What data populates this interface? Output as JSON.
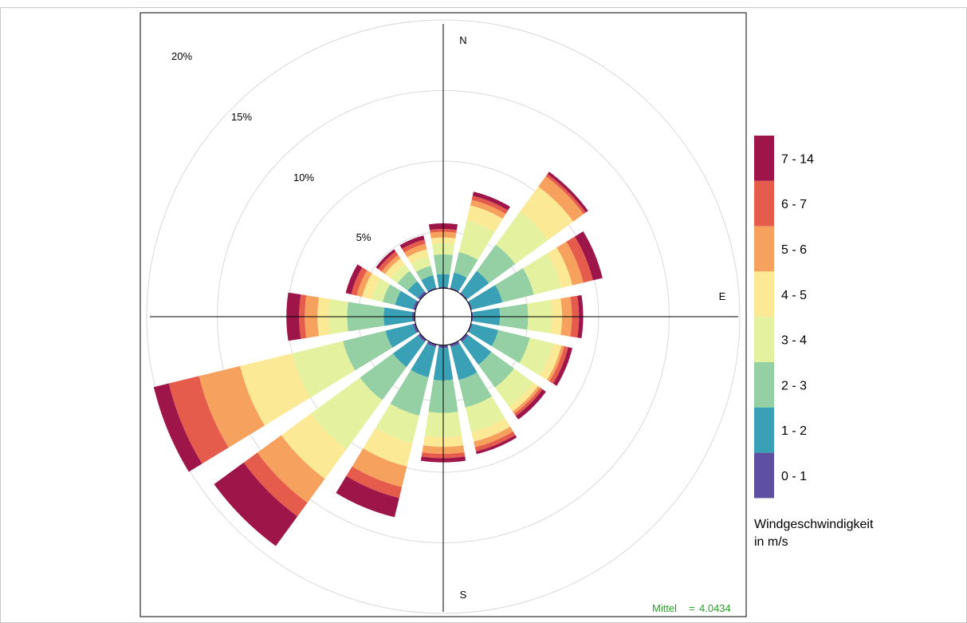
{
  "chart_data": {
    "type": "windrose",
    "directions": [
      "N",
      "NNE",
      "NE",
      "ENE",
      "E",
      "ESE",
      "SE",
      "SSE",
      "S",
      "SSW",
      "SW",
      "WSW",
      "W",
      "WNW",
      "NW",
      "NNW"
    ],
    "compass_labels": {
      "N": "N",
      "E": "E",
      "S": "S"
    },
    "rings": [
      {
        "value": 5,
        "label": "5%"
      },
      {
        "value": 10,
        "label": "10%"
      },
      {
        "value": 15,
        "label": "15%"
      },
      {
        "value": 20,
        "label": "20%"
      }
    ],
    "calm_radius_percent": 1.0,
    "bins": [
      {
        "label": "0 - 1",
        "color": "#5E4FA2"
      },
      {
        "label": "1 - 2",
        "color": "#3AA0B5"
      },
      {
        "label": "2 - 3",
        "color": "#94D0A4"
      },
      {
        "label": "3 - 4",
        "color": "#E4F19E"
      },
      {
        "label": "4 - 5",
        "color": "#FCE996"
      },
      {
        "label": "5 - 6",
        "color": "#F7A15E"
      },
      {
        "label": "6 - 7",
        "color": "#E65C4C"
      },
      {
        "label": "7 - 14",
        "color": "#9E1549"
      }
    ],
    "cumulative_percent": [
      [
        1.1,
        2.0,
        3.4,
        4.2,
        4.6,
        5.0,
        5.2,
        5.6
      ],
      [
        1.1,
        2.2,
        3.7,
        6.0,
        7.1,
        7.5,
        7.8,
        8.1
      ],
      [
        1.1,
        3.0,
        5.3,
        8.2,
        10.4,
        11.3,
        11.5,
        11.7
      ],
      [
        1.1,
        3.3,
        5.6,
        7.6,
        8.4,
        9.2,
        9.9,
        10.6
      ],
      [
        1.1,
        3.0,
        5.0,
        6.7,
        7.4,
        8.1,
        8.6,
        8.9
      ],
      [
        1.1,
        3.0,
        5.3,
        7.0,
        7.6,
        7.8,
        8.1,
        8.4
      ],
      [
        1.2,
        3.2,
        5.2,
        6.9,
        7.3,
        7.5,
        7.7,
        8.0
      ],
      [
        1.2,
        3.6,
        5.6,
        7.4,
        8.1,
        8.5,
        8.8,
        9.0
      ],
      [
        1.2,
        3.5,
        5.8,
        7.5,
        8.2,
        8.7,
        9.0,
        9.3
      ],
      [
        1.2,
        3.4,
        6.2,
        8.2,
        9.9,
        11.4,
        12.2,
        13.6
      ],
      [
        1.2,
        3.4,
        6.3,
        10.6,
        13.2,
        15.3,
        16.5,
        19.1
      ],
      [
        1.2,
        3.2,
        6.3,
        10.0,
        13.8,
        16.8,
        19.0,
        20.1
      ],
      [
        1.2,
        3.2,
        5.8,
        7.1,
        7.9,
        8.8,
        9.2,
        10.1
      ],
      [
        1.2,
        2.5,
        3.4,
        4.2,
        4.9,
        5.3,
        5.7,
        6.1
      ],
      [
        1.2,
        2.1,
        3.0,
        3.6,
        4.1,
        4.4,
        4.7,
        4.9
      ],
      [
        1.1,
        2.0,
        2.7,
        3.4,
        3.9,
        4.3,
        4.6,
        4.9
      ]
    ],
    "legend_title": [
      "Windgeschwindigkeit",
      "in m/s"
    ],
    "stat_label": "Mittel",
    "stat_value": "4.0434",
    "stat_color": "#2CA02C",
    "grid": true
  }
}
